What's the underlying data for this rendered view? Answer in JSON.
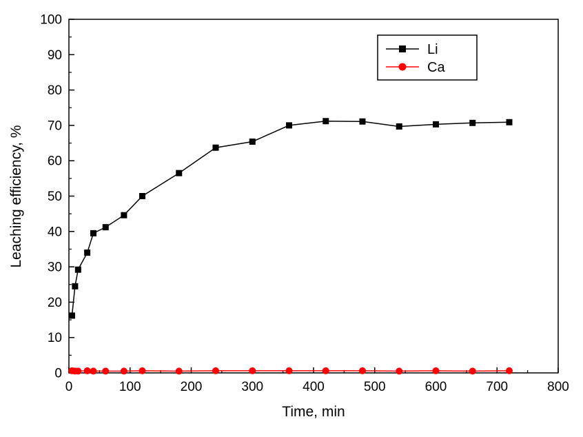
{
  "chart_data": {
    "type": "line",
    "title": "",
    "xlabel": "Time, min",
    "ylabel": "Leaching efficiency, %",
    "xlim": [
      0,
      800
    ],
    "ylim": [
      0,
      100
    ],
    "grid": false,
    "x_ticks": [
      0,
      100,
      200,
      300,
      400,
      500,
      600,
      700,
      800
    ],
    "y_ticks": [
      0,
      10,
      20,
      30,
      40,
      50,
      60,
      70,
      80,
      90,
      100
    ],
    "x_minor_step": 50,
    "y_minor_step": 5,
    "legend": {
      "position": "top-right",
      "entries": [
        "Li",
        "Ca"
      ]
    },
    "series": [
      {
        "name": "Li",
        "color": "#000000",
        "marker": "square",
        "x": [
          5,
          10,
          15,
          30,
          40,
          60,
          90,
          120,
          180,
          240,
          300,
          360,
          420,
          480,
          540,
          600,
          660,
          720
        ],
        "y": [
          16.2,
          24.5,
          29.2,
          34.0,
          39.5,
          41.2,
          44.6,
          50.0,
          56.5,
          63.7,
          65.4,
          70.0,
          71.2,
          71.1,
          69.7,
          70.3,
          70.7,
          70.9
        ]
      },
      {
        "name": "Ca",
        "color": "#ff0000",
        "marker": "circle",
        "x": [
          5,
          10,
          15,
          30,
          40,
          60,
          90,
          120,
          180,
          240,
          300,
          360,
          420,
          480,
          540,
          600,
          660,
          720
        ],
        "y": [
          0.6,
          0.5,
          0.5,
          0.6,
          0.5,
          0.5,
          0.5,
          0.6,
          0.5,
          0.6,
          0.6,
          0.6,
          0.6,
          0.6,
          0.5,
          0.6,
          0.5,
          0.6
        ]
      }
    ]
  }
}
